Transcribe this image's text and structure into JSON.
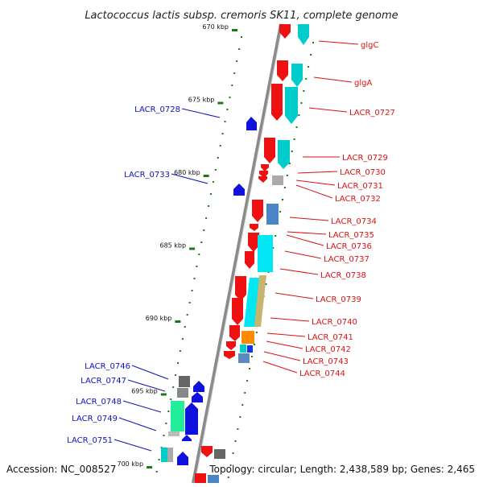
{
  "title": "Lactococcus lactis subsp. cremoris SK11, complete genome",
  "footer": {
    "accession": "Accession: NC_008527",
    "summary": "Topology: circular; Length: 2,438,589 bp; Genes: 2,465"
  },
  "colors": {
    "forward_label": "#dd1111",
    "reverse_label": "#1111bb",
    "backbone": "#8a8a8a",
    "tick": "#1a7a1a"
  },
  "ruler": [
    {
      "kbp": 670,
      "label": "670 kbp"
    },
    {
      "kbp": 675,
      "label": "675 kbp"
    },
    {
      "kbp": 680,
      "label": "680 kbp"
    },
    {
      "kbp": 685,
      "label": "685 kbp"
    },
    {
      "kbp": 690,
      "label": "690 kbp"
    },
    {
      "kbp": 695,
      "label": "695 kbp"
    },
    {
      "kbp": 700,
      "label": "700 kbp"
    }
  ],
  "forward_labels": [
    "glgC",
    "glgA",
    "LACR_0727",
    "LACR_0729",
    "LACR_0730",
    "LACR_0731",
    "LACR_0732",
    "LACR_0734",
    "LACR_0735",
    "LACR_0736",
    "LACR_0737",
    "LACR_0738",
    "LACR_0739",
    "LACR_0740",
    "LACR_0741",
    "LACR_0742",
    "LACR_0743",
    "LACR_0744"
  ],
  "reverse_labels": [
    "LACR_0728",
    "LACR_0733",
    "LACR_0746",
    "LACR_0747",
    "LACR_0748",
    "LACR_0749",
    "LACR_0751"
  ]
}
